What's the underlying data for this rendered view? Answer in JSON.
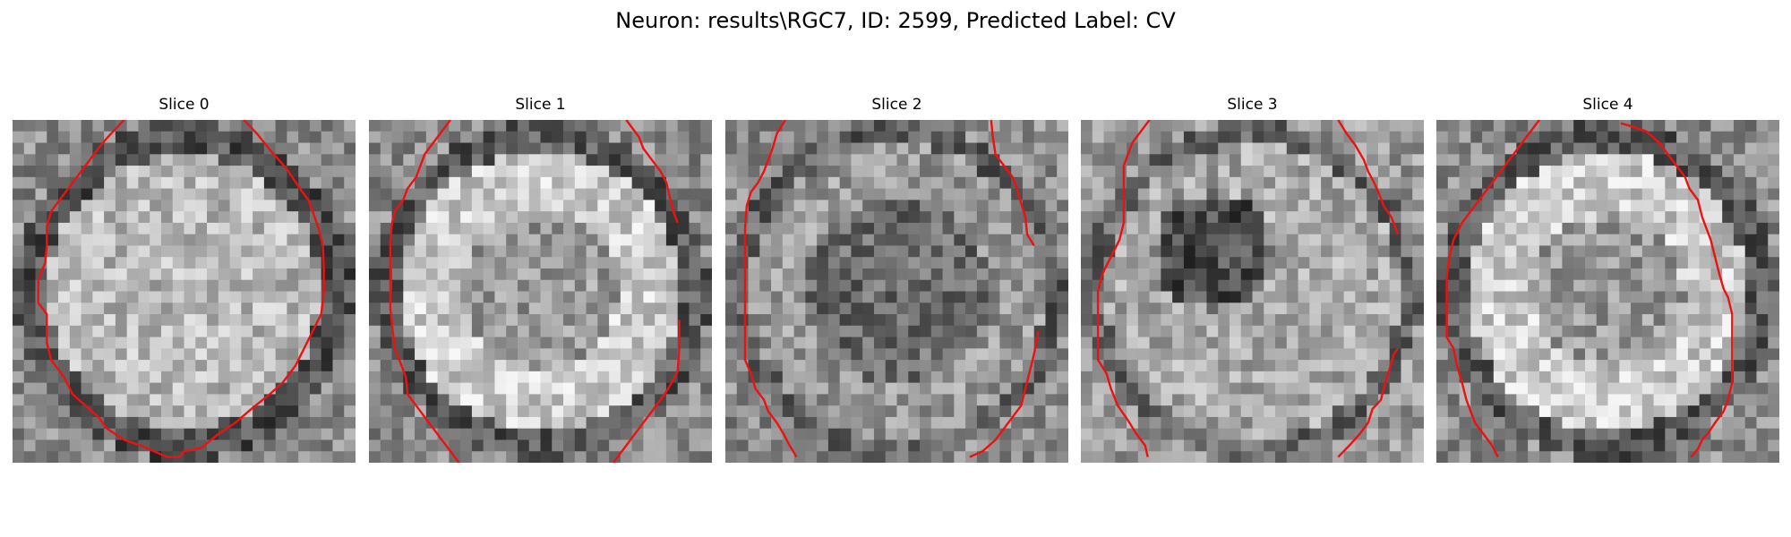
{
  "figure": {
    "title": "Neuron: results\\RGC7, ID: 2599, Predicted Label: CV"
  },
  "colors": {
    "contour": "#ee1111",
    "background": "#ffffff"
  },
  "slices": [
    {
      "title": "Slice 0",
      "seed": 11,
      "pattern": "bright-center",
      "contour": [
        [
          13,
          0
        ],
        [
          11,
          1.6
        ],
        [
          10,
          2.5
        ],
        [
          8.5,
          4
        ],
        [
          7.5,
          5
        ],
        [
          6.5,
          6
        ],
        [
          5.5,
          7
        ],
        [
          4.5,
          8
        ],
        [
          4,
          9.3
        ],
        [
          4,
          11
        ],
        [
          3.8,
          12.5
        ],
        [
          3,
          14
        ],
        [
          3,
          16
        ],
        [
          4,
          17
        ],
        [
          4,
          18.5
        ],
        [
          4,
          19.5
        ],
        [
          4.5,
          21
        ],
        [
          6,
          22.5
        ],
        [
          7,
          24
        ],
        [
          8.5,
          25
        ],
        [
          10,
          26
        ],
        [
          11,
          27
        ],
        [
          13,
          28
        ],
        [
          15,
          28.5
        ],
        [
          16.5,
          29
        ],
        [
          18,
          29.5
        ],
        [
          19.5,
          29.5
        ],
        [
          20,
          29
        ],
        [
          22,
          28.7
        ],
        [
          24,
          27.5
        ],
        [
          26,
          26.5
        ],
        [
          28,
          25.2
        ],
        [
          30,
          24
        ],
        [
          31.5,
          23
        ],
        [
          33,
          21.5
        ],
        [
          34,
          20
        ],
        [
          35,
          18.5
        ],
        [
          36,
          17
        ],
        [
          36.3,
          15
        ],
        [
          36.3,
          13
        ],
        [
          36.2,
          11
        ],
        [
          35.7,
          9.5
        ],
        [
          35,
          8
        ],
        [
          34.5,
          7
        ],
        [
          33.5,
          6
        ],
        [
          32,
          4.3
        ],
        [
          30,
          2.6
        ],
        [
          28.5,
          1.2
        ],
        [
          27,
          0
        ]
      ]
    },
    {
      "title": "Slice 1",
      "seed": 23,
      "pattern": "bright-ring",
      "segments": [
        [
          [
            9.5,
            0
          ],
          [
            8,
            1.5
          ],
          [
            6.5,
            3
          ],
          [
            6,
            4
          ],
          [
            5.5,
            5
          ],
          [
            4.5,
            6
          ],
          [
            4,
            7
          ],
          [
            3,
            8
          ],
          [
            2.7,
            9
          ],
          [
            2.5,
            10.5
          ],
          [
            2.5,
            12.5
          ],
          [
            2.5,
            14.5
          ],
          [
            2.5,
            16.5
          ],
          [
            2.7,
            18
          ],
          [
            3,
            20
          ],
          [
            3.8,
            21.5
          ],
          [
            4.3,
            22.5
          ],
          [
            4.5,
            24
          ],
          [
            5.5,
            25
          ],
          [
            6.5,
            26
          ],
          [
            7.5,
            27
          ],
          [
            8.5,
            28
          ],
          [
            9.5,
            29
          ],
          [
            10.5,
            30
          ]
        ],
        [
          [
            30,
            0
          ],
          [
            31.5,
            1.5
          ],
          [
            32,
            2.5
          ],
          [
            33,
            3.5
          ],
          [
            34,
            4.5
          ],
          [
            34.7,
            5.5
          ],
          [
            35,
            6.5
          ],
          [
            35.5,
            8
          ],
          [
            36,
            9
          ]
        ],
        [
          [
            28.5,
            30
          ],
          [
            30,
            28.5
          ],
          [
            31.5,
            27
          ],
          [
            33,
            25.5
          ],
          [
            34.5,
            24
          ],
          [
            35.3,
            23
          ],
          [
            36,
            22
          ],
          [
            36.2,
            20
          ],
          [
            36.2,
            17.5
          ]
        ]
      ]
    },
    {
      "title": "Slice 2",
      "seed": 37,
      "pattern": "dark-center",
      "segments": [
        [
          [
            7,
            0
          ],
          [
            6,
            1.2
          ],
          [
            5.5,
            2.5
          ],
          [
            5,
            3.5
          ],
          [
            4.5,
            4.5
          ],
          [
            3.8,
            5.5
          ],
          [
            3,
            6.3
          ],
          [
            2.5,
            7.5
          ],
          [
            2.3,
            9.5
          ],
          [
            2.3,
            12
          ],
          [
            2.3,
            14.5
          ],
          [
            2.3,
            17
          ],
          [
            2.3,
            19.5
          ],
          [
            2.3,
            21
          ],
          [
            3,
            22.2
          ],
          [
            3.5,
            23.5
          ],
          [
            4.5,
            24.5
          ],
          [
            5,
            25.5
          ],
          [
            6,
            26.5
          ],
          [
            6.8,
            27.5
          ],
          [
            7.5,
            28.5
          ],
          [
            8.3,
            29.5
          ]
        ],
        [
          [
            31,
            0
          ],
          [
            31.2,
            1.5
          ],
          [
            31.5,
            3
          ],
          [
            32.5,
            4
          ],
          [
            33.5,
            5
          ],
          [
            34,
            6
          ],
          [
            34.5,
            7.3
          ],
          [
            35,
            8.5
          ],
          [
            35.2,
            10
          ],
          [
            36,
            11
          ]
        ],
        [
          [
            28.5,
            29.5
          ],
          [
            30,
            29
          ],
          [
            31.5,
            28
          ],
          [
            32.5,
            27
          ],
          [
            33.5,
            26
          ],
          [
            34.5,
            25
          ],
          [
            35,
            23.5
          ],
          [
            35.5,
            22
          ],
          [
            36,
            20.5
          ],
          [
            36.5,
            18.5
          ]
        ]
      ]
    },
    {
      "title": "Slice 3",
      "seed": 51,
      "pattern": "dark-upper-left",
      "segments": [
        [
          [
            8,
            0
          ],
          [
            7,
            1
          ],
          [
            6,
            2
          ],
          [
            5.5,
            3
          ],
          [
            5,
            4
          ],
          [
            5,
            6.5
          ],
          [
            5,
            9
          ],
          [
            4.5,
            10.5
          ],
          [
            3.5,
            12
          ],
          [
            2.5,
            13.5
          ],
          [
            2,
            15
          ],
          [
            2,
            17
          ],
          [
            2,
            19.5
          ],
          [
            2,
            21
          ],
          [
            3,
            22.2
          ],
          [
            3.5,
            23.5
          ],
          [
            4.3,
            25
          ],
          [
            5.5,
            26.3
          ],
          [
            6.5,
            27.5
          ],
          [
            7.5,
            28.5
          ],
          [
            7.8,
            29.5
          ]
        ],
        [
          [
            30,
            0
          ],
          [
            31,
            1.2
          ],
          [
            32,
            2.2
          ],
          [
            33,
            3.5
          ],
          [
            33.5,
            4.5
          ],
          [
            34.2,
            5.5
          ],
          [
            34.8,
            6.5
          ],
          [
            35.3,
            7.5
          ],
          [
            36.2,
            8.5
          ],
          [
            37,
            10
          ]
        ],
        [
          [
            30,
            29.5
          ],
          [
            31.3,
            28.5
          ],
          [
            32.5,
            27.5
          ],
          [
            33.5,
            26.5
          ],
          [
            34,
            25.3
          ],
          [
            35,
            24.5
          ],
          [
            35.5,
            23
          ],
          [
            36,
            21.8
          ],
          [
            36.5,
            20.5
          ],
          [
            37,
            20
          ]
        ]
      ]
    },
    {
      "title": "Slice 4",
      "seed": 67,
      "pattern": "bright-ring",
      "segments": [
        [
          [
            12,
            0
          ],
          [
            10.5,
            1.5
          ],
          [
            9,
            3
          ],
          [
            7.5,
            4.5
          ],
          [
            6,
            6
          ],
          [
            4.5,
            7.5
          ],
          [
            3,
            9
          ],
          [
            2,
            10.5
          ],
          [
            1.5,
            12
          ],
          [
            1.2,
            14
          ],
          [
            1.2,
            16.5
          ],
          [
            1.2,
            18
          ],
          [
            1.2,
            19
          ],
          [
            2,
            20
          ],
          [
            2.4,
            21.5
          ],
          [
            3,
            23
          ],
          [
            3.5,
            24.5
          ],
          [
            4,
            25.5
          ],
          [
            4.5,
            26.5
          ],
          [
            5.5,
            27.5
          ],
          [
            6.5,
            28.5
          ],
          [
            7.2,
            29.5
          ]
        ],
        [
          [
            21.5,
            0.3
          ],
          [
            23,
            0.6
          ],
          [
            24.5,
            1
          ],
          [
            26,
            2
          ],
          [
            27,
            3
          ],
          [
            28,
            4
          ],
          [
            29,
            5
          ],
          [
            29.5,
            6
          ],
          [
            30.5,
            7
          ],
          [
            31,
            8.5
          ],
          [
            31.5,
            9.5
          ],
          [
            32,
            10.5
          ],
          [
            32.5,
            12
          ],
          [
            33,
            13.5
          ],
          [
            33.5,
            14.8
          ],
          [
            34,
            15.5
          ],
          [
            34.5,
            17
          ],
          [
            34.5,
            19
          ],
          [
            34.5,
            21
          ],
          [
            34.5,
            23
          ],
          [
            34,
            24.5
          ],
          [
            33.5,
            25.5
          ],
          [
            32.5,
            26.5
          ],
          [
            31.8,
            27.3
          ],
          [
            31,
            28
          ],
          [
            30.5,
            28.8
          ],
          [
            29.7,
            29.5
          ]
        ]
      ]
    }
  ]
}
